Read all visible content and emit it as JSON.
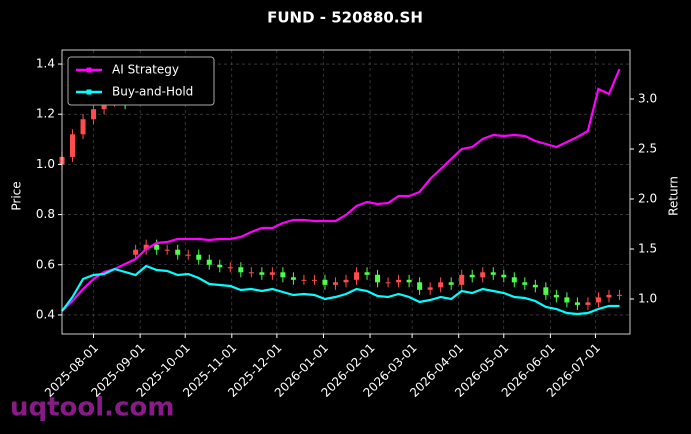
{
  "chart_data": {
    "type": "candlestick",
    "title": "FUND - 520880.SH",
    "watermark": "uqtool.com",
    "ylabel": "Price",
    "y2label": "Return",
    "grid": true,
    "legend": "upper left",
    "up_color": "#ff4d4d",
    "down_color": "#4dff4d",
    "xlim": [
      "2025-07-11",
      "2026-07-24"
    ],
    "xticks": [
      "2025-08-01",
      "2025-09-01",
      "2025-10-01",
      "2025-11-01",
      "2025-12-01",
      "2026-01-01",
      "2026-02-01",
      "2026-03-01",
      "2026-04-01",
      "2026-05-01",
      "2026-06-01",
      "2026-07-01"
    ],
    "ylim": [
      0.324,
      1.456
    ],
    "yticks": [
      0.4,
      0.6,
      0.8,
      {
        "value": 1,
        "label": "1.0"
      },
      1.2,
      1.4
    ],
    "y2lim": [
      0.65,
      3.49
    ],
    "y2ticks": [
      {
        "value": 1,
        "label": "1.0"
      },
      1.5,
      {
        "value": 2,
        "label": "2.0"
      },
      2.5,
      {
        "value": 3,
        "label": "3.0"
      }
    ],
    "x": [
      "2025-07-11",
      "2025-07-18",
      "2025-07-25",
      "2025-08-01",
      "2025-08-08",
      "2025-08-15",
      "2025-08-22",
      "2025-08-29",
      "2025-09-05",
      "2025-09-12",
      "2025-09-19",
      "2025-09-26",
      "2025-10-03",
      "2025-10-10",
      "2025-10-17",
      "2025-10-24",
      "2025-10-31",
      "2025-11-07",
      "2025-11-14",
      "2025-11-21",
      "2025-11-28",
      "2025-12-05",
      "2025-12-12",
      "2025-12-19",
      "2025-12-26",
      "2026-01-02",
      "2026-01-09",
      "2026-01-16",
      "2026-01-23",
      "2026-01-30",
      "2026-02-06",
      "2026-02-13",
      "2026-02-20",
      "2026-02-27",
      "2026-03-06",
      "2026-03-13",
      "2026-03-20",
      "2026-03-27",
      "2026-04-03",
      "2026-04-10",
      "2026-04-17",
      "2026-04-24",
      "2026-05-01",
      "2026-05-08",
      "2026-05-15",
      "2026-05-22",
      "2026-05-29",
      "2026-06-05",
      "2026-06-12",
      "2026-06-19",
      "2026-06-26",
      "2026-07-03",
      "2026-07-10",
      "2026-07-17"
    ],
    "open": [
      1.0,
      1.03,
      1.12,
      1.18,
      1.22,
      1.25,
      1.27,
      0.64,
      0.66,
      0.68,
      0.66,
      0.66,
      0.64,
      0.64,
      0.62,
      0.6,
      0.59,
      0.59,
      0.57,
      0.57,
      0.56,
      0.57,
      0.55,
      0.54,
      0.54,
      0.54,
      0.52,
      0.53,
      0.54,
      0.57,
      0.56,
      0.53,
      0.53,
      0.54,
      0.53,
      0.5,
      0.51,
      0.53,
      0.52,
      0.56,
      0.55,
      0.57,
      0.56,
      0.55,
      0.53,
      0.52,
      0.51,
      0.48,
      0.47,
      0.45,
      0.44,
      0.45,
      0.47,
      0.48
    ],
    "high": [
      1.05,
      1.14,
      1.2,
      1.24,
      1.27,
      1.29,
      1.29,
      0.68,
      0.7,
      0.7,
      0.68,
      0.68,
      0.66,
      0.66,
      0.64,
      0.62,
      0.61,
      0.61,
      0.59,
      0.59,
      0.59,
      0.59,
      0.57,
      0.56,
      0.56,
      0.56,
      0.55,
      0.56,
      0.59,
      0.59,
      0.58,
      0.55,
      0.56,
      0.56,
      0.55,
      0.53,
      0.55,
      0.55,
      0.58,
      0.58,
      0.59,
      0.59,
      0.58,
      0.57,
      0.55,
      0.54,
      0.53,
      0.5,
      0.49,
      0.47,
      0.47,
      0.49,
      0.5,
      0.5
    ],
    "low": [
      0.98,
      1.01,
      1.1,
      1.16,
      1.2,
      1.23,
      1.22,
      0.62,
      0.64,
      0.64,
      0.64,
      0.62,
      0.62,
      0.6,
      0.58,
      0.57,
      0.57,
      0.55,
      0.55,
      0.54,
      0.54,
      0.53,
      0.52,
      0.52,
      0.52,
      0.5,
      0.5,
      0.51,
      0.52,
      0.54,
      0.51,
      0.51,
      0.51,
      0.51,
      0.48,
      0.48,
      0.49,
      0.5,
      0.5,
      0.53,
      0.53,
      0.54,
      0.53,
      0.51,
      0.5,
      0.49,
      0.46,
      0.45,
      0.43,
      0.42,
      0.42,
      0.43,
      0.45,
      0.46
    ],
    "close": [
      1.03,
      1.12,
      1.18,
      1.22,
      1.25,
      1.27,
      1.24,
      0.66,
      0.68,
      0.66,
      0.66,
      0.64,
      0.64,
      0.62,
      0.6,
      0.59,
      0.59,
      0.57,
      0.57,
      0.56,
      0.57,
      0.55,
      0.54,
      0.54,
      0.54,
      0.52,
      0.53,
      0.54,
      0.57,
      0.56,
      0.53,
      0.53,
      0.54,
      0.53,
      0.5,
      0.51,
      0.53,
      0.52,
      0.56,
      0.55,
      0.57,
      0.56,
      0.55,
      0.53,
      0.52,
      0.51,
      0.48,
      0.47,
      0.45,
      0.44,
      0.45,
      0.47,
      0.48,
      0.48
    ],
    "series": [
      {
        "name": "AI Strategy",
        "color": "#ff00ff",
        "axis": "y2",
        "values": [
          0.88,
          0.98,
          1.1,
          1.2,
          1.27,
          1.3,
          1.35,
          1.4,
          1.5,
          1.56,
          1.57,
          1.6,
          1.6,
          1.6,
          1.59,
          1.6,
          1.6,
          1.62,
          1.67,
          1.71,
          1.71,
          1.76,
          1.79,
          1.79,
          1.78,
          1.78,
          1.78,
          1.84,
          1.93,
          1.97,
          1.95,
          1.96,
          2.03,
          2.03,
          2.07,
          2.2,
          2.3,
          2.4,
          2.5,
          2.52,
          2.6,
          2.64,
          2.63,
          2.64,
          2.63,
          2.58,
          2.55,
          2.52,
          2.57,
          2.62,
          2.68,
          3.1,
          3.05,
          3.3
        ]
      },
      {
        "name": "Buy-and-Hold",
        "color": "#00ffff",
        "axis": "y2",
        "values": [
          0.88,
          1.02,
          1.2,
          1.24,
          1.25,
          1.3,
          1.27,
          1.24,
          1.33,
          1.29,
          1.28,
          1.24,
          1.25,
          1.21,
          1.15,
          1.14,
          1.13,
          1.09,
          1.1,
          1.08,
          1.1,
          1.07,
          1.04,
          1.05,
          1.04,
          1.0,
          1.02,
          1.05,
          1.1,
          1.08,
          1.03,
          1.02,
          1.05,
          1.02,
          0.97,
          0.99,
          1.02,
          1.0,
          1.08,
          1.06,
          1.1,
          1.08,
          1.06,
          1.02,
          1.01,
          0.98,
          0.92,
          0.9,
          0.86,
          0.85,
          0.86,
          0.9,
          0.93,
          0.93
        ]
      }
    ]
  }
}
